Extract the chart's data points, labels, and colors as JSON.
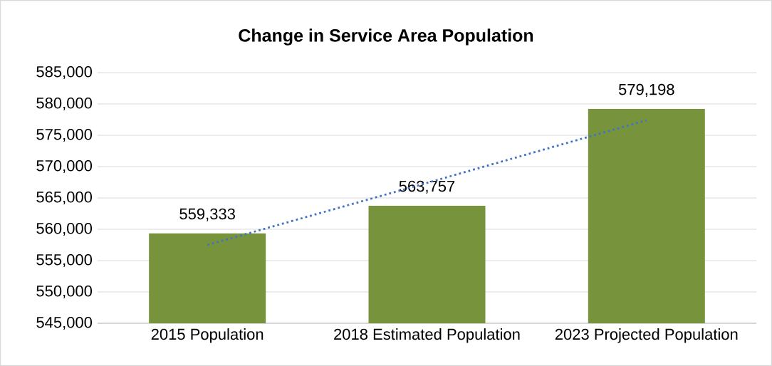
{
  "chart_data": {
    "type": "bar",
    "title": "Change in Service Area Population",
    "categories": [
      "2015 Population",
      "2018 Estimated Population",
      "2023 Projected Population"
    ],
    "series": [
      {
        "color": "#77933c",
        "values": [
          559333,
          563757,
          579198
        ],
        "value_labels": [
          "559,333",
          "563,757",
          "579,198"
        ]
      },
      {
        "type": "line",
        "color": "#4472c4",
        "line_style": "dotted",
        "values": [
          557500,
          567400,
          577400
        ]
      }
    ],
    "ylim": [
      545000,
      585000
    ],
    "yticks": [
      {
        "value": 545000,
        "label": "545,000"
      },
      {
        "value": 550000,
        "label": "550,000"
      },
      {
        "value": 555000,
        "label": "555,000"
      },
      {
        "value": 560000,
        "label": "560,000"
      },
      {
        "value": 565000,
        "label": "565,000"
      },
      {
        "value": 570000,
        "label": "570,000"
      },
      {
        "value": 575000,
        "label": "575,000"
      },
      {
        "value": 580000,
        "label": "580,000"
      },
      {
        "value": 585000,
        "label": "585,000"
      }
    ],
    "grid": "y"
  }
}
